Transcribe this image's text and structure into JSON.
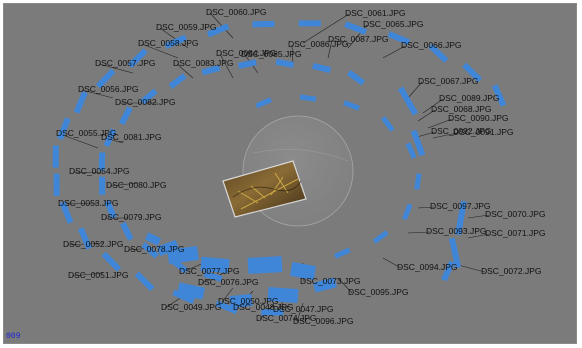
{
  "viewer": {
    "frame_counter": "009",
    "colors": {
      "background": "#7b7b7b",
      "camera_plane": "#3f86d8",
      "leader_line": "#202020",
      "label_text": "#111111",
      "counter_text": "#1a22d8"
    }
  },
  "camera_labels": [
    "DSC_0060.JPG",
    "DSC_0061.JPG",
    "DSC_0065.JPG",
    "DSC_0066.JPG",
    "DSC_0059.JPG",
    "DSC_0058.JPG",
    "DSC_0057.JPG",
    "DSC_0056.JPG",
    "DSC_0082.JPG",
    "DSC_0083.JPG",
    "DSC_0084.JPG",
    "DSC_0085.JPG",
    "DSC_0086.JPG",
    "DSC_0087.JPG",
    "DSC_0067.JPG",
    "DSC_0089.JPG",
    "DSC_0068.JPG",
    "DSC_0090.JPG",
    "DSC_0092.JPG",
    "DSC_0081.JPG",
    "DSC_0091.JPG",
    "DSC_0055.JPG",
    "DSC_0080.JPG",
    "DSC_0054.JPG",
    "DSC_0053.JPG",
    "DSC_0079.JPG",
    "DSC_0097.JPG",
    "DSC_0070.JPG",
    "DSC_0093.JPG",
    "DSC_0071.JPG",
    "DSC_0052.JPG",
    "DSC_0078.JPG",
    "DSC_0094.JPG",
    "DSC_0072.JPG",
    "DSC_0051.JPG",
    "DSC_0077.JPG",
    "DSC_0076.JPG",
    "DSC_0073.JPG",
    "DSC_0095.JPG",
    "DSC_0050.JPG",
    "DSC_0049.JPG",
    "DSC_0048.JPG",
    "DSC_0047.JPG",
    "DSC_0074.JPG",
    "DSC_0096.JPG"
  ]
}
